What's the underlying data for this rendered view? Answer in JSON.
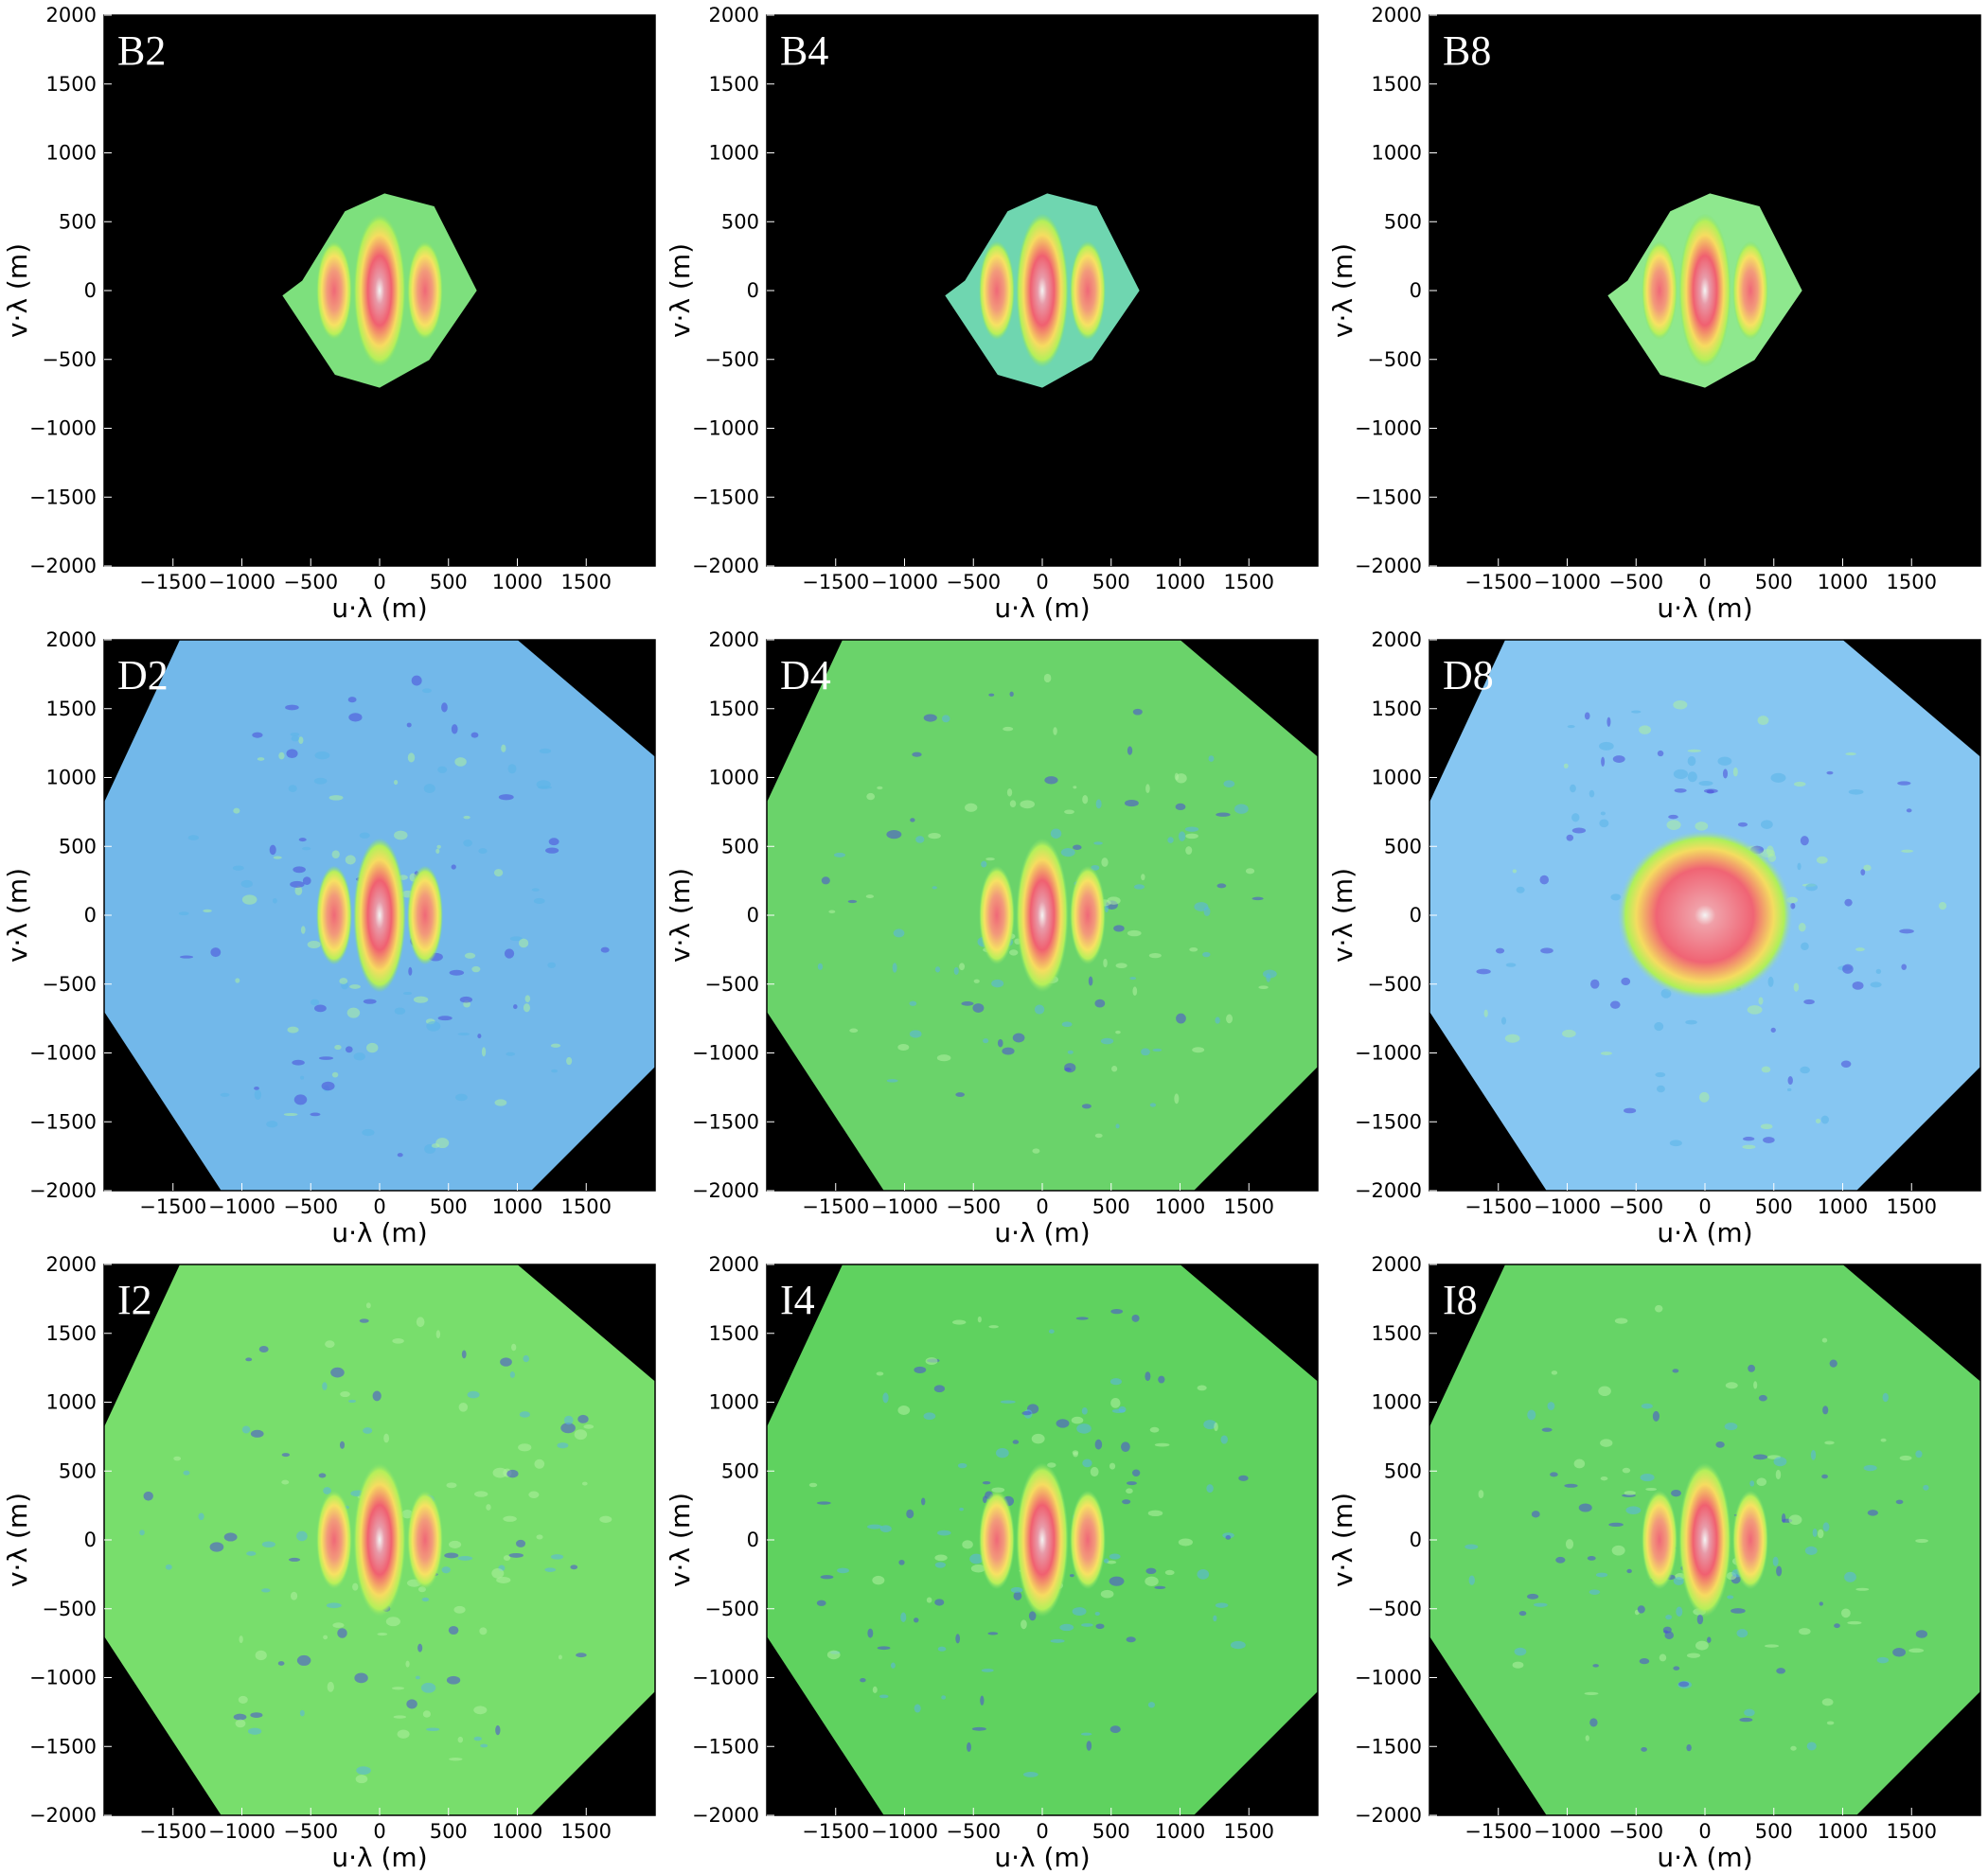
{
  "chart_data": {
    "type": "heatmap",
    "layout": "3x3 grid",
    "xlabel": "u·λ (m)",
    "ylabel": "v·λ (m)",
    "xlim": [
      -2000,
      2000
    ],
    "ylim": [
      -2000,
      2000
    ],
    "xticks": [
      "−1500",
      "−1000",
      "−500",
      "0",
      "500",
      "1000",
      "1500"
    ],
    "yticks": [
      "2000",
      "1500",
      "1000",
      "500",
      "0",
      "−500",
      "−1000",
      "−1500",
      "−2000"
    ],
    "background": "#000000",
    "colormap": [
      "#2020c0",
      "#6ec8f0",
      "#3cd23c",
      "#f5f560",
      "#f06070",
      "#f2f2f2"
    ],
    "grid": false,
    "panels": [
      {
        "title": "B2",
        "coverage": "compact-hexagon",
        "extent_m": 720,
        "background_color": "#7de07d",
        "core_lobes": 3
      },
      {
        "title": "B4",
        "coverage": "compact-hexagon",
        "extent_m": 720,
        "background_color": "#6fd6b0",
        "core_lobes": 3
      },
      {
        "title": "B8",
        "coverage": "compact-hexagon",
        "extent_m": 720,
        "background_color": "#8ee88e",
        "core_lobes": 3
      },
      {
        "title": "D2",
        "coverage": "rotated-square",
        "extent_m": 2000,
        "background_color": "#72b8ea",
        "core_lobes": 3
      },
      {
        "title": "D4",
        "coverage": "rotated-square",
        "extent_m": 2000,
        "background_color": "#6ad36a",
        "core_lobes": 3
      },
      {
        "title": "D8",
        "coverage": "rotated-square",
        "extent_m": 2000,
        "background_color": "#86c6f2",
        "core_lobes": 1
      },
      {
        "title": "I2",
        "coverage": "rotated-square",
        "extent_m": 2000,
        "background_color": "#78de6c",
        "core_lobes": 3
      },
      {
        "title": "I4",
        "coverage": "rotated-square",
        "extent_m": 2000,
        "background_color": "#5fd25f",
        "core_lobes": 3
      },
      {
        "title": "I8",
        "coverage": "rotated-square",
        "extent_m": 2000,
        "background_color": "#66d466",
        "core_lobes": 3
      }
    ]
  }
}
